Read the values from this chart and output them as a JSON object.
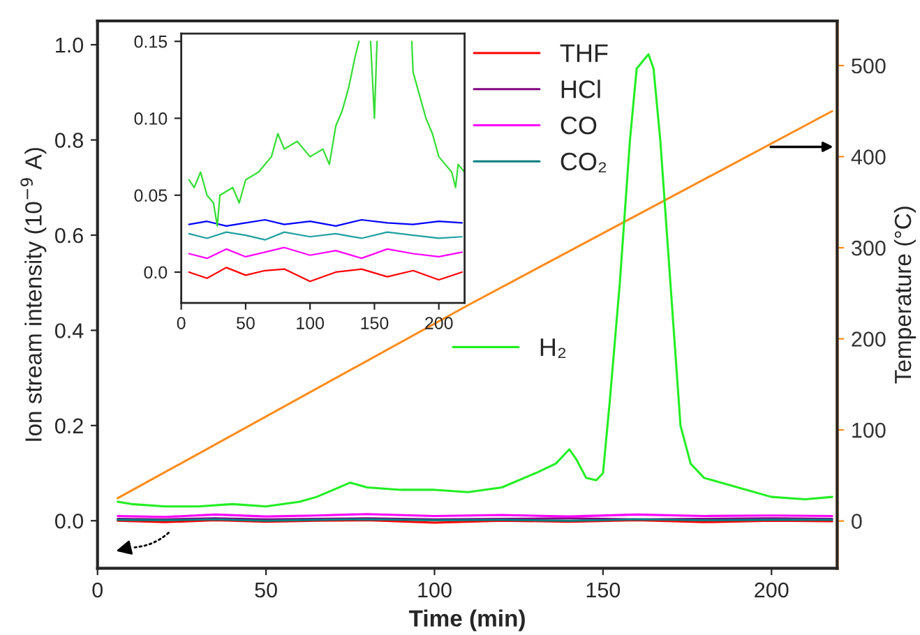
{
  "chart_data": [
    {
      "type": "line",
      "xlabel": "Time (min)",
      "ylabel": "Ion stream intensity (10$^{−9}$ A)",
      "y2label": "Temperature (°C)",
      "xlim": [
        0,
        219.5
      ],
      "xticks": [
        0,
        50,
        100,
        150,
        200
      ],
      "ylim": [
        -0.1,
        1.05
      ],
      "yticks": [
        {
          "value": 0,
          "label": "0.0"
        },
        {
          "value": 0.2,
          "label": "0.2"
        },
        {
          "value": 0.4,
          "label": "0.4"
        },
        {
          "value": 0.6,
          "label": "0.6"
        },
        {
          "value": 0.8,
          "label": "0.8"
        },
        {
          "value": 1.0,
          "label": "1.0"
        }
      ],
      "y2lim": [
        -52,
        549
      ],
      "y2ticks": [
        0,
        100,
        200,
        300,
        400,
        500
      ],
      "grid": false,
      "legend": "top",
      "series": [
        {
          "name": "THF",
          "color": "#ff0000",
          "x": [
            6,
            20,
            35,
            50,
            65,
            80,
            100,
            120,
            140,
            160,
            180,
            200,
            218
          ],
          "values": [
            0.0,
            -0.003,
            0.001,
            -0.002,
            0.0,
            0.001,
            -0.004,
            0.0,
            -0.002,
            0.001,
            -0.003,
            0.0,
            -0.001
          ]
        },
        {
          "name": "HCl",
          "color": "#800080",
          "x": [
            6,
            20,
            35,
            50,
            65,
            80,
            100,
            120,
            140,
            160,
            180,
            200,
            218
          ],
          "values": [
            0.004,
            0.003,
            0.005,
            0.003,
            0.004,
            0.005,
            0.003,
            0.004,
            0.005,
            0.003,
            0.004,
            0.005,
            0.004
          ]
        },
        {
          "name": "CO",
          "color": "#ff00ff",
          "x": [
            6,
            20,
            35,
            50,
            65,
            80,
            100,
            120,
            140,
            160,
            180,
            200,
            218
          ],
          "values": [
            0.01,
            0.008,
            0.013,
            0.009,
            0.011,
            0.014,
            0.01,
            0.012,
            0.009,
            0.013,
            0.01,
            0.011,
            0.01
          ]
        },
        {
          "name": "CO₂",
          "color": "#008080",
          "x": [
            6,
            20,
            35,
            50,
            65,
            80,
            100,
            120,
            140,
            160,
            180,
            200,
            218
          ],
          "values": [
            0.002,
            0.001,
            0.003,
            0.0,
            0.002,
            0.003,
            0.001,
            0.002,
            0.0,
            0.003,
            0.001,
            0.002,
            0.002
          ]
        },
        {
          "name": "H₂",
          "color": "#22ee22",
          "x": [
            6,
            10,
            20,
            30,
            40,
            50,
            60,
            65,
            75,
            80,
            90,
            100,
            110,
            120,
            130,
            136,
            140,
            142,
            145,
            148,
            150,
            152,
            155,
            158,
            160,
            163.5,
            165,
            167,
            170,
            173,
            176,
            180,
            190,
            200,
            210,
            218
          ],
          "values": [
            0.04,
            0.035,
            0.03,
            0.03,
            0.035,
            0.03,
            0.04,
            0.05,
            0.08,
            0.07,
            0.065,
            0.065,
            0.06,
            0.07,
            0.1,
            0.12,
            0.15,
            0.13,
            0.09,
            0.085,
            0.1,
            0.25,
            0.5,
            0.8,
            0.95,
            0.98,
            0.95,
            0.8,
            0.5,
            0.2,
            0.12,
            0.09,
            0.07,
            0.05,
            0.045,
            0.05
          ]
        },
        {
          "color": "#ff8c1a",
          "axis": "y2",
          "x": [
            6,
            110,
            218
          ],
          "values": [
            25,
            237,
            450
          ]
        }
      ]
    },
    {
      "type": "line",
      "xlim": [
        0,
        220
      ],
      "xticks": [
        0,
        50,
        100,
        150,
        200
      ],
      "ylim": [
        -0.02,
        0.155
      ],
      "yticks": [
        {
          "value": 0,
          "label": "0.0"
        },
        0.05,
        {
          "value": 0.1,
          "label": "0.10"
        },
        0.15
      ],
      "grid": false,
      "series": [
        {
          "color": "#0000ff",
          "x": [
            6,
            20,
            35,
            50,
            65,
            80,
            100,
            120,
            140,
            160,
            180,
            200,
            218
          ],
          "values": [
            0.031,
            0.033,
            0.03,
            0.032,
            0.034,
            0.031,
            0.033,
            0.03,
            0.034,
            0.032,
            0.031,
            0.033,
            0.032
          ]
        },
        {
          "color": "#20a0a0",
          "x": [
            6,
            20,
            35,
            50,
            65,
            80,
            100,
            120,
            140,
            160,
            180,
            200,
            218
          ],
          "values": [
            0.025,
            0.022,
            0.026,
            0.024,
            0.021,
            0.026,
            0.023,
            0.025,
            0.022,
            0.026,
            0.024,
            0.022,
            0.023
          ]
        },
        {
          "color": "#ff00ff",
          "x": [
            6,
            20,
            35,
            50,
            65,
            80,
            100,
            120,
            140,
            160,
            180,
            200,
            218
          ],
          "values": [
            0.012,
            0.009,
            0.015,
            0.01,
            0.013,
            0.016,
            0.011,
            0.014,
            0.009,
            0.015,
            0.012,
            0.01,
            0.013
          ]
        },
        {
          "color": "#ff0000",
          "x": [
            6,
            20,
            35,
            50,
            65,
            80,
            100,
            120,
            140,
            160,
            180,
            200,
            218
          ],
          "values": [
            0.0,
            -0.004,
            0.003,
            -0.002,
            0.001,
            0.002,
            -0.006,
            0.0,
            0.002,
            -0.003,
            0.001,
            -0.005,
            0.0
          ]
        },
        {
          "color": "#33dd33",
          "x": [
            6,
            10,
            15,
            20,
            25,
            28,
            30,
            40,
            45,
            50,
            60,
            70,
            75,
            80,
            90,
            100,
            110,
            115,
            120,
            125,
            130,
            135,
            138,
            140,
            145,
            147,
            150,
            152,
            155,
            175,
            179,
            180,
            185,
            190,
            195,
            200,
            205,
            210,
            213,
            215,
            220
          ],
          "values": [
            0.06,
            0.055,
            0.065,
            0.05,
            0.045,
            0.03,
            0.05,
            0.055,
            0.045,
            0.06,
            0.065,
            0.075,
            0.09,
            0.08,
            0.085,
            0.075,
            0.08,
            0.07,
            0.095,
            0.105,
            0.12,
            0.14,
            0.15,
            null,
            null,
            0.15,
            0.1,
            0.15,
            null,
            null,
            0.15,
            0.13,
            0.115,
            0.1,
            0.09,
            0.075,
            0.07,
            0.065,
            0.055,
            0.07,
            0.065
          ]
        }
      ]
    }
  ]
}
